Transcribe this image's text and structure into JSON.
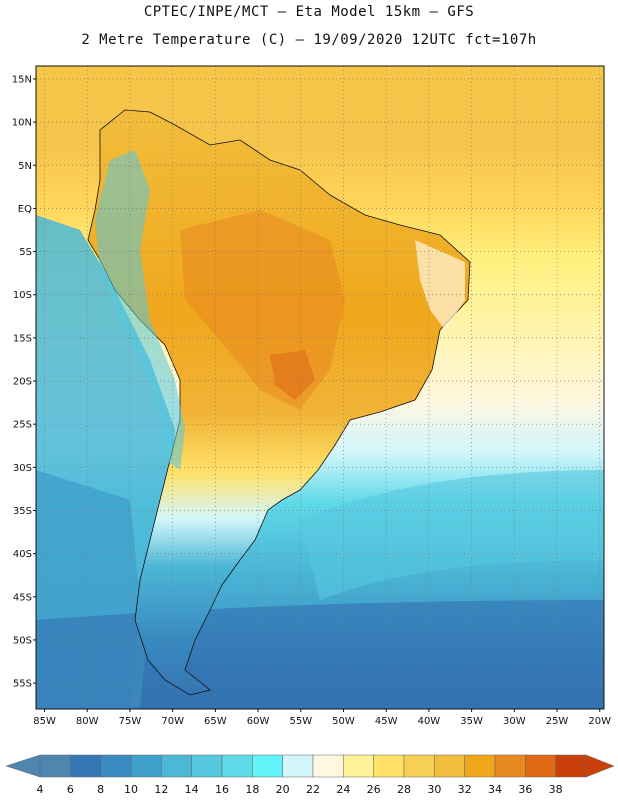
{
  "header": {
    "line1": "CPTEC/INPE/MCT –  Eta Model 15km – GFS",
    "line2": "2 Metre Temperature (C) – 19/09/2020 12UTC fct=107h"
  },
  "map": {
    "lat_ticks": [
      "15N",
      "10N",
      "5N",
      "EQ",
      "5S",
      "10S",
      "15S",
      "20S",
      "25S",
      "30S",
      "35S",
      "40S",
      "45S",
      "50S",
      "55S"
    ],
    "lon_ticks": [
      "85W",
      "80W",
      "75W",
      "70W",
      "65W",
      "60W",
      "55W",
      "50W",
      "45W",
      "40W",
      "35W",
      "30W",
      "25W",
      "20W"
    ],
    "lat_range": [
      -58,
      16.5
    ],
    "lon_range": [
      -86,
      -19.5
    ],
    "grid": "dotted"
  },
  "colorbar": {
    "levels": [
      "4",
      "6",
      "8",
      "10",
      "12",
      "14",
      "16",
      "18",
      "20",
      "22",
      "24",
      "26",
      "28",
      "30",
      "32",
      "34",
      "36",
      "38"
    ],
    "colors": [
      "#4f86b0",
      "#3576b5",
      "#3a8bc2",
      "#3fa0cc",
      "#4cb7d6",
      "#56c8df",
      "#5fd9e8",
      "#62f4f8",
      "#d2f6fb",
      "#fff7df",
      "#fff39a",
      "#ffe16a",
      "#f7cf55",
      "#f1bd3c",
      "#f0a71c",
      "#e8891f",
      "#df6a16",
      "#c9400b"
    ]
  }
}
